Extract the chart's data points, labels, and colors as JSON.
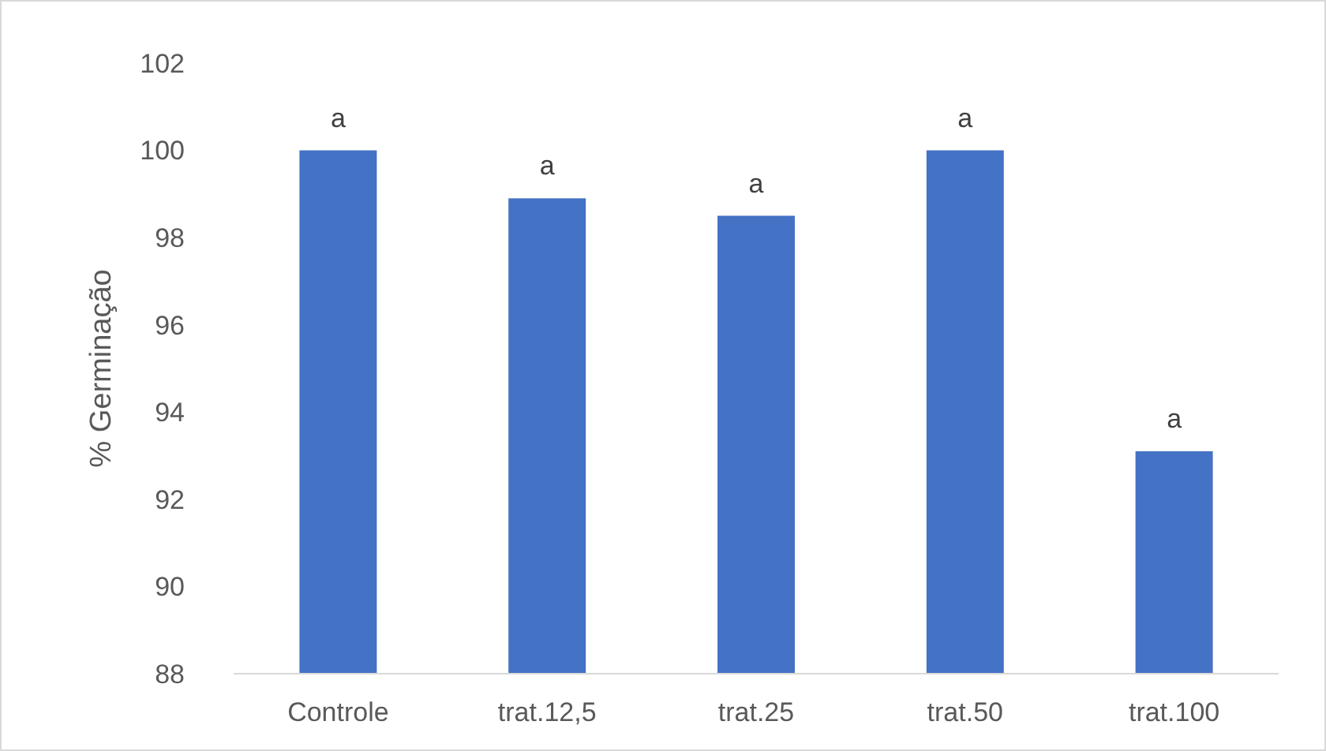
{
  "chart_data": {
    "type": "bar",
    "ylabel": "% Germinação",
    "categories": [
      "Controle",
      "trat.12,5",
      "trat.25",
      "trat.50",
      "trat.100"
    ],
    "values": [
      100,
      98.9,
      98.5,
      100,
      93.1
    ],
    "color": "#4472c4",
    "value_labels": [
      "a",
      "a",
      "a",
      "a",
      "a"
    ],
    "ylim": [
      88,
      102
    ],
    "yticks": [
      88,
      90,
      92,
      94,
      96,
      98,
      100,
      102
    ],
    "grid": false
  }
}
